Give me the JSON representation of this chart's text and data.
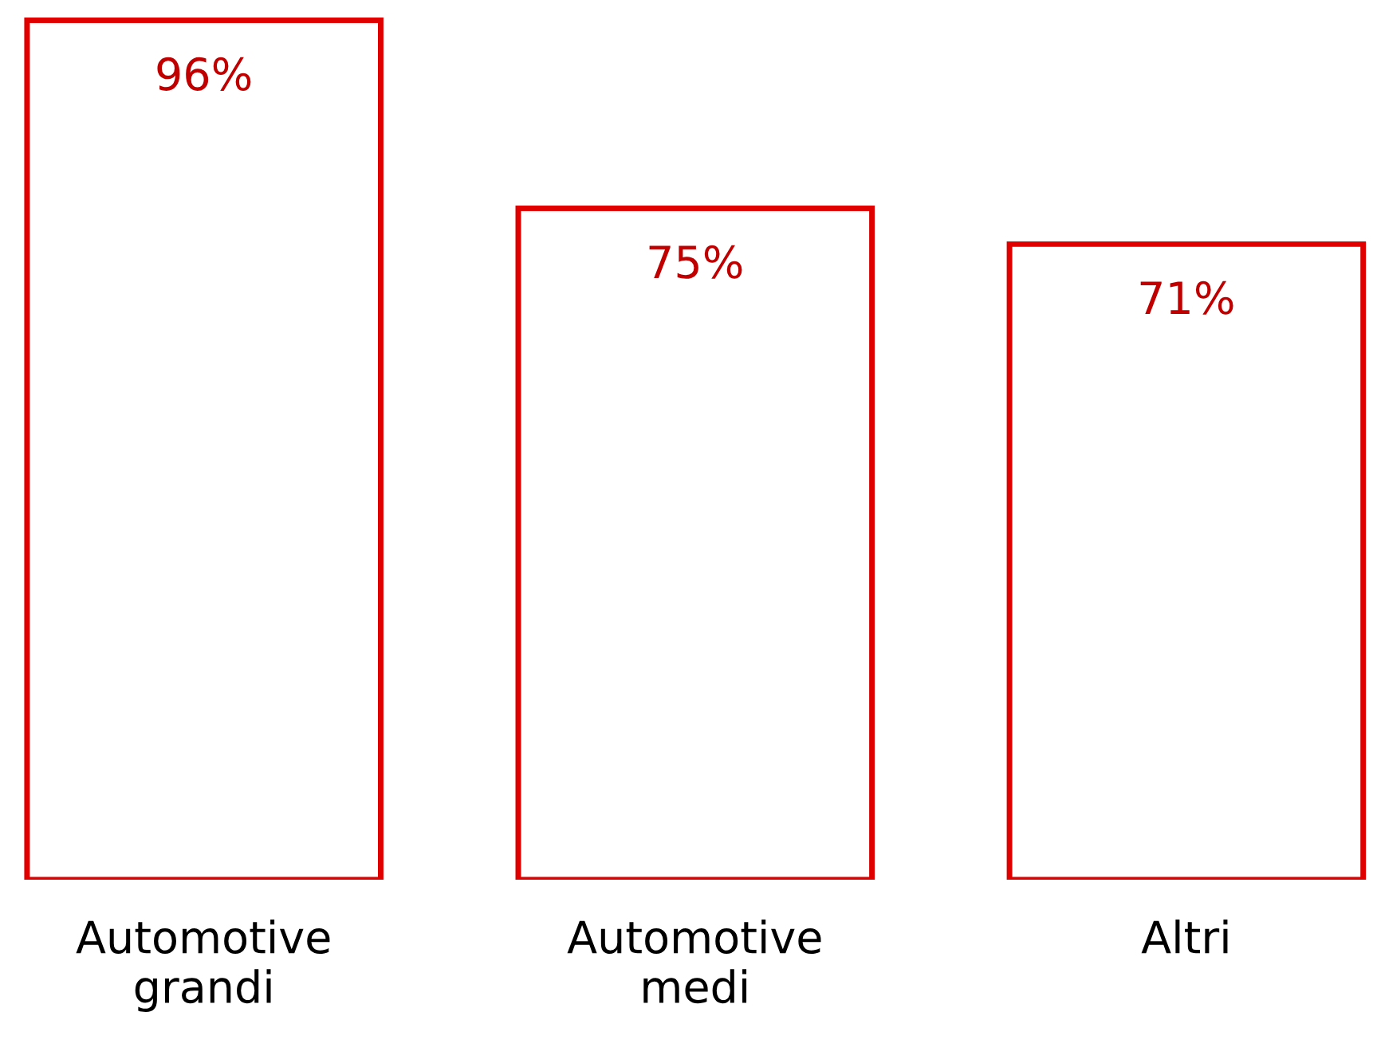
{
  "chart_data": {
    "type": "bar",
    "categories": [
      "Automotive\ngrandi",
      "Automotive\nmedi",
      "Altri"
    ],
    "values": [
      96,
      75,
      71
    ],
    "color": "#e00000",
    "data_labels": true,
    "value_labels": [
      "96%",
      "75%",
      "71%"
    ],
    "grid": false,
    "legend": false
  }
}
